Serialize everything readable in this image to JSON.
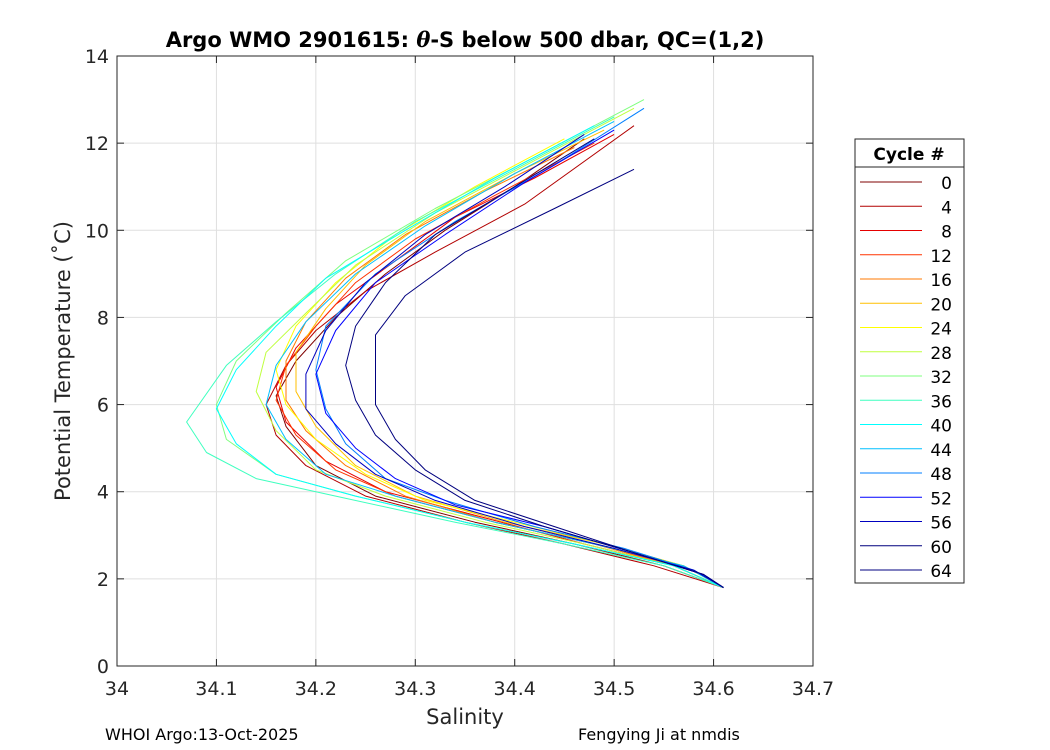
{
  "chart_data": {
    "type": "line",
    "title_prefix": "Argo WMO 2901615: ",
    "title_theta": "θ",
    "title_suffix": "-S below 500 dbar,  QC=(1,2)",
    "xlabel": "Salinity",
    "ylabel": "Potential Temperature (˚C)",
    "xlim": [
      34.0,
      34.7
    ],
    "ylim": [
      0,
      14
    ],
    "xticks": [
      34.0,
      34.1,
      34.2,
      34.3,
      34.4,
      34.5,
      34.6,
      34.7
    ],
    "xtick_labels": [
      "34",
      "34.1",
      "34.2",
      "34.3",
      "34.4",
      "34.5",
      "34.6",
      "34.7"
    ],
    "yticks": [
      0,
      2,
      4,
      6,
      8,
      10,
      12,
      14
    ],
    "ytick_labels": [
      "0",
      "2",
      "4",
      "6",
      "8",
      "10",
      "12",
      "14"
    ],
    "grid": true,
    "legend_title": "Cycle #",
    "legend_position": "right",
    "series": [
      {
        "name": "0",
        "color": "#7f0000",
        "x": [
          34.47,
          34.4,
          34.33,
          34.27,
          34.22,
          34.18,
          34.16,
          34.17,
          34.2,
          34.26,
          34.36,
          34.46,
          34.55,
          34.61
        ],
        "y": [
          12.1,
          11.0,
          10.0,
          9.0,
          8.0,
          7.0,
          6.2,
          5.5,
          4.6,
          3.9,
          3.3,
          2.8,
          2.3,
          1.8
        ]
      },
      {
        "name": "4",
        "color": "#b20000",
        "x": [
          34.52,
          34.41,
          34.32,
          34.25,
          34.2,
          34.17,
          34.15,
          34.16,
          34.19,
          34.25,
          34.35,
          34.45,
          34.54,
          34.61
        ],
        "y": [
          12.4,
          10.6,
          9.5,
          8.6,
          7.7,
          6.9,
          6.0,
          5.3,
          4.6,
          3.9,
          3.3,
          2.8,
          2.3,
          1.8
        ]
      },
      {
        "name": "8",
        "color": "#e50000",
        "x": [
          34.5,
          34.42,
          34.34,
          34.28,
          34.22,
          34.18,
          34.16,
          34.17,
          34.21,
          34.27,
          34.37,
          34.47,
          34.56,
          34.61
        ],
        "y": [
          12.2,
          11.2,
          10.3,
          9.3,
          8.3,
          7.3,
          6.4,
          5.6,
          4.7,
          4.0,
          3.4,
          2.8,
          2.3,
          1.8
        ]
      },
      {
        "name": "12",
        "color": "#ff3300",
        "x": [
          34.48,
          34.38,
          34.3,
          34.24,
          34.2,
          34.17,
          34.16,
          34.18,
          34.22,
          34.28,
          34.38,
          34.48,
          34.56,
          34.61
        ],
        "y": [
          12.0,
          10.8,
          9.8,
          8.8,
          7.8,
          6.9,
          6.1,
          5.3,
          4.5,
          3.9,
          3.3,
          2.8,
          2.3,
          1.8
        ]
      },
      {
        "name": "16",
        "color": "#ff7a00",
        "x": [
          34.46,
          34.37,
          34.29,
          34.23,
          34.19,
          34.17,
          34.17,
          34.19,
          34.23,
          34.29,
          34.38,
          34.48,
          34.56,
          34.61
        ],
        "y": [
          11.9,
          10.9,
          9.9,
          8.9,
          7.9,
          7.0,
          6.1,
          5.4,
          4.6,
          3.9,
          3.3,
          2.8,
          2.3,
          1.8
        ]
      },
      {
        "name": "20",
        "color": "#ffbf00",
        "x": [
          34.49,
          34.4,
          34.31,
          34.25,
          34.21,
          34.18,
          34.18,
          34.2,
          34.24,
          34.3,
          34.39,
          34.49,
          34.57,
          34.61
        ],
        "y": [
          12.3,
          11.3,
          10.2,
          9.2,
          8.2,
          7.2,
          6.3,
          5.5,
          4.6,
          3.9,
          3.3,
          2.8,
          2.3,
          1.8
        ]
      },
      {
        "name": "24",
        "color": "#ffff00",
        "x": [
          34.45,
          34.36,
          34.28,
          34.22,
          34.18,
          34.16,
          34.17,
          34.2,
          34.25,
          34.31,
          34.4,
          34.49,
          34.57,
          34.61
        ],
        "y": [
          12.1,
          11.0,
          9.9,
          8.8,
          7.8,
          6.8,
          6.0,
          5.2,
          4.4,
          3.8,
          3.3,
          2.8,
          2.3,
          1.8
        ]
      },
      {
        "name": "28",
        "color": "#bfff3f",
        "x": [
          34.52,
          34.42,
          34.32,
          34.24,
          34.19,
          34.15,
          34.14,
          34.16,
          34.2,
          34.27,
          34.37,
          34.47,
          34.56,
          34.61
        ],
        "y": [
          12.8,
          11.6,
          10.4,
          9.2,
          8.1,
          7.2,
          6.3,
          5.4,
          4.5,
          3.9,
          3.3,
          2.8,
          2.3,
          1.8
        ]
      },
      {
        "name": "32",
        "color": "#7fff7f",
        "x": [
          34.53,
          34.43,
          34.32,
          34.23,
          34.17,
          34.12,
          34.1,
          34.11,
          34.16,
          34.24,
          34.35,
          34.46,
          34.56,
          34.61
        ],
        "y": [
          13.0,
          11.8,
          10.5,
          9.3,
          8.1,
          7.0,
          6.0,
          5.2,
          4.4,
          3.9,
          3.3,
          2.8,
          2.3,
          1.8
        ]
      },
      {
        "name": "36",
        "color": "#3fffbf",
        "x": [
          34.5,
          34.4,
          34.3,
          34.22,
          34.16,
          34.11,
          34.07,
          34.09,
          34.14,
          34.22,
          34.34,
          34.45,
          34.55,
          34.61
        ],
        "y": [
          12.6,
          11.4,
          10.2,
          9.0,
          7.9,
          6.9,
          5.6,
          4.9,
          4.3,
          3.9,
          3.3,
          2.8,
          2.3,
          1.8
        ]
      },
      {
        "name": "40",
        "color": "#00ffff",
        "x": [
          34.48,
          34.38,
          34.29,
          34.21,
          34.16,
          34.12,
          34.1,
          34.12,
          34.16,
          34.24,
          34.35,
          34.46,
          34.56,
          34.61
        ],
        "y": [
          12.4,
          11.2,
          10.0,
          8.9,
          7.8,
          6.8,
          5.9,
          5.1,
          4.4,
          3.9,
          3.3,
          2.8,
          2.3,
          1.8
        ]
      },
      {
        "name": "44",
        "color": "#00bfff",
        "x": [
          34.5,
          34.4,
          34.31,
          34.24,
          34.19,
          34.16,
          34.15,
          34.17,
          34.21,
          34.28,
          34.38,
          34.48,
          34.57,
          34.61
        ],
        "y": [
          12.5,
          11.3,
          10.1,
          9.0,
          7.9,
          6.9,
          6.0,
          5.2,
          4.4,
          3.9,
          3.3,
          2.8,
          2.3,
          1.8
        ]
      },
      {
        "name": "48",
        "color": "#007fff",
        "x": [
          34.53,
          34.44,
          34.34,
          34.26,
          34.21,
          34.2,
          34.21,
          34.23,
          34.27,
          34.33,
          34.42,
          34.51,
          34.58,
          34.61
        ],
        "y": [
          12.8,
          11.5,
          10.2,
          9.0,
          7.8,
          6.8,
          5.9,
          5.1,
          4.3,
          3.8,
          3.2,
          2.7,
          2.2,
          1.8
        ]
      },
      {
        "name": "52",
        "color": "#0000ff",
        "x": [
          34.5,
          34.41,
          34.33,
          34.26,
          34.22,
          34.2,
          34.21,
          34.24,
          34.28,
          34.34,
          34.43,
          34.52,
          34.59,
          34.61
        ],
        "y": [
          12.3,
          11.1,
          9.9,
          8.8,
          7.7,
          6.7,
          5.8,
          5.0,
          4.3,
          3.7,
          3.2,
          2.6,
          2.1,
          1.8
        ]
      },
      {
        "name": "56",
        "color": "#0000bf",
        "x": [
          34.47,
          34.39,
          34.31,
          34.25,
          34.21,
          34.19,
          34.19,
          34.22,
          34.26,
          34.32,
          34.41,
          34.5,
          34.58,
          34.61
        ],
        "y": [
          12.2,
          11.0,
          9.9,
          8.8,
          7.7,
          6.7,
          5.9,
          5.1,
          4.4,
          3.8,
          3.2,
          2.7,
          2.2,
          1.8
        ]
      },
      {
        "name": "60",
        "color": "#00007f",
        "x": [
          34.52,
          34.44,
          34.35,
          34.29,
          34.26,
          34.26,
          34.26,
          34.28,
          34.31,
          34.36,
          34.44,
          34.52,
          34.59,
          34.61
        ],
        "y": [
          11.4,
          10.5,
          9.5,
          8.5,
          7.6,
          6.8,
          6.0,
          5.2,
          4.5,
          3.8,
          3.2,
          2.6,
          2.1,
          1.8
        ]
      },
      {
        "name": "64",
        "color": "#000080",
        "x": [
          34.48,
          34.4,
          34.32,
          34.27,
          34.24,
          34.23,
          34.24,
          34.26,
          34.3,
          34.35,
          34.43,
          34.52,
          34.59,
          34.61
        ],
        "y": [
          12.1,
          11.0,
          9.9,
          8.8,
          7.8,
          6.9,
          6.1,
          5.3,
          4.5,
          3.8,
          3.2,
          2.6,
          2.1,
          1.8
        ]
      }
    ]
  },
  "footer": {
    "left": "WHOI Argo:13-Oct-2025",
    "right": "Fengying Ji at nmdis"
  }
}
